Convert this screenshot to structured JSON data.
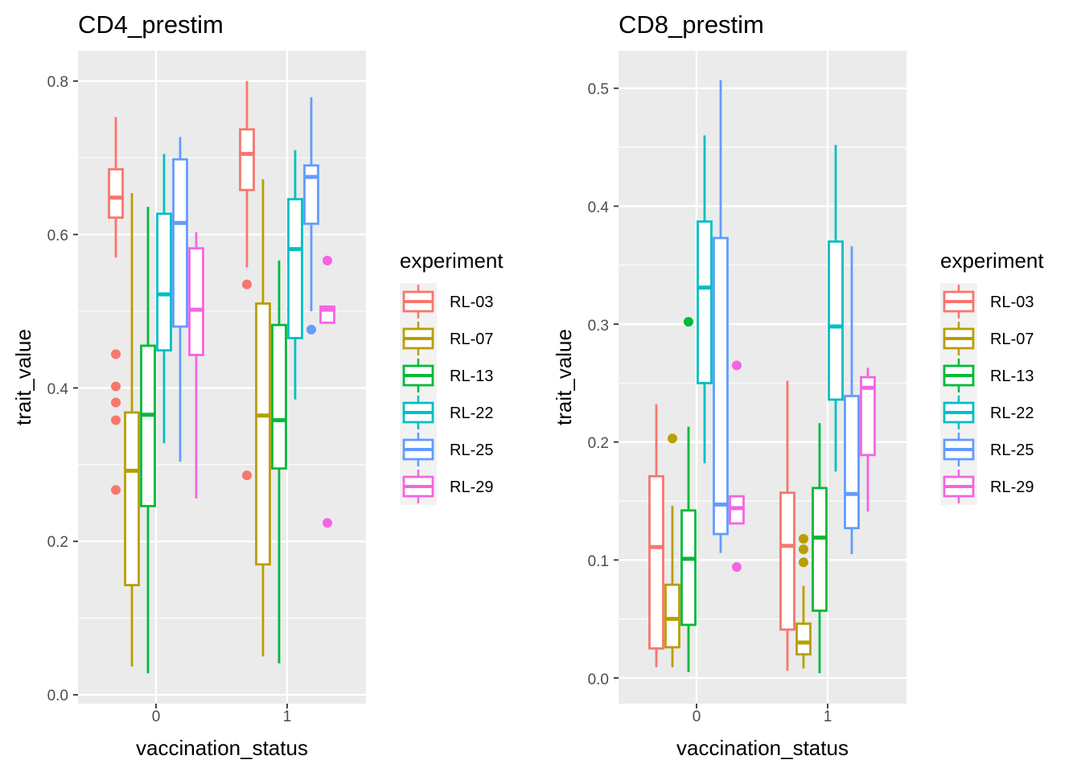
{
  "chart_data": [
    {
      "type": "boxplot",
      "title": "CD4_prestim",
      "xlabel": "vaccination_status",
      "ylabel": "trait_value",
      "categories": [
        "0",
        "1"
      ],
      "ylim": [
        -0.01,
        0.84
      ],
      "yticks": [
        "0.0",
        "0.2",
        "0.4",
        "0.6",
        "0.8"
      ],
      "legend_title": "experiment",
      "series": [
        {
          "name": "RL-03",
          "color": "#F8766D",
          "boxes": [
            {
              "category": "0",
              "lower": 0.57,
              "q1": 0.622,
              "median": 0.648,
              "q3": 0.685,
              "upper": 0.753,
              "outliers": [
                0.444,
                0.402,
                0.381,
                0.358,
                0.267
              ]
            },
            {
              "category": "1",
              "lower": 0.557,
              "q1": 0.658,
              "median": 0.705,
              "q3": 0.737,
              "upper": 0.8,
              "outliers": [
                0.535,
                0.286
              ]
            }
          ]
        },
        {
          "name": "RL-07",
          "color": "#B79F00",
          "boxes": [
            {
              "category": "0",
              "lower": 0.037,
              "q1": 0.143,
              "median": 0.292,
              "q3": 0.368,
              "upper": 0.654,
              "outliers": []
            },
            {
              "category": "1",
              "lower": 0.05,
              "q1": 0.17,
              "median": 0.364,
              "q3": 0.51,
              "upper": 0.672,
              "outliers": []
            }
          ]
        },
        {
          "name": "RL-13",
          "color": "#00BA38",
          "boxes": [
            {
              "category": "0",
              "lower": 0.028,
              "q1": 0.246,
              "median": 0.365,
              "q3": 0.455,
              "upper": 0.636,
              "outliers": []
            },
            {
              "category": "1",
              "lower": 0.041,
              "q1": 0.295,
              "median": 0.358,
              "q3": 0.482,
              "upper": 0.566,
              "outliers": []
            }
          ]
        },
        {
          "name": "RL-22",
          "color": "#00BFC4",
          "boxes": [
            {
              "category": "0",
              "lower": 0.328,
              "q1": 0.449,
              "median": 0.522,
              "q3": 0.627,
              "upper": 0.705,
              "outliers": []
            },
            {
              "category": "1",
              "lower": 0.385,
              "q1": 0.465,
              "median": 0.581,
              "q3": 0.646,
              "upper": 0.71,
              "outliers": []
            }
          ]
        },
        {
          "name": "RL-25",
          "color": "#619CFF",
          "boxes": [
            {
              "category": "0",
              "lower": 0.304,
              "q1": 0.48,
              "median": 0.615,
              "q3": 0.698,
              "upper": 0.727,
              "outliers": []
            },
            {
              "category": "1",
              "lower": 0.5,
              "q1": 0.614,
              "median": 0.675,
              "q3": 0.69,
              "upper": 0.779,
              "outliers": [
                0.476
              ]
            }
          ]
        },
        {
          "name": "RL-29",
          "color": "#F564E3",
          "boxes": [
            {
              "category": "0",
              "lower": 0.256,
              "q1": 0.443,
              "median": 0.502,
              "q3": 0.582,
              "upper": 0.603,
              "outliers": []
            },
            {
              "category": "1",
              "lower": 0.485,
              "q1": 0.485,
              "median": 0.502,
              "q3": 0.506,
              "upper": 0.506,
              "outliers": [
                0.566,
                0.224
              ]
            }
          ]
        }
      ]
    },
    {
      "type": "boxplot",
      "title": "CD8_prestim",
      "xlabel": "vaccination_status",
      "ylabel": "trait_value",
      "categories": [
        "0",
        "1"
      ],
      "ylim": [
        -0.02,
        0.52
      ],
      "yticks": [
        "0.0",
        "0.1",
        "0.2",
        "0.3",
        "0.4",
        "0.5"
      ],
      "legend_title": "experiment",
      "series": [
        {
          "name": "RL-03",
          "color": "#F8766D",
          "boxes": [
            {
              "category": "0",
              "lower": 0.009,
              "q1": 0.025,
              "median": 0.111,
              "q3": 0.171,
              "upper": 0.232,
              "outliers": []
            },
            {
              "category": "1",
              "lower": 0.006,
              "q1": 0.041,
              "median": 0.112,
              "q3": 0.157,
              "upper": 0.252,
              "outliers": []
            }
          ]
        },
        {
          "name": "RL-07",
          "color": "#B79F00",
          "boxes": [
            {
              "category": "0",
              "lower": 0.009,
              "q1": 0.026,
              "median": 0.05,
              "q3": 0.079,
              "upper": 0.146,
              "outliers": [
                0.203
              ]
            },
            {
              "category": "1",
              "lower": 0.008,
              "q1": 0.02,
              "median": 0.03,
              "q3": 0.046,
              "upper": 0.078,
              "outliers": [
                0.118,
                0.109,
                0.098
              ]
            }
          ]
        },
        {
          "name": "RL-13",
          "color": "#00BA38",
          "boxes": [
            {
              "category": "0",
              "lower": 0.005,
              "q1": 0.045,
              "median": 0.101,
              "q3": 0.142,
              "upper": 0.213,
              "outliers": [
                0.302
              ]
            },
            {
              "category": "1",
              "lower": 0.004,
              "q1": 0.057,
              "median": 0.119,
              "q3": 0.161,
              "upper": 0.216,
              "outliers": []
            }
          ]
        },
        {
          "name": "RL-22",
          "color": "#00BFC4",
          "boxes": [
            {
              "category": "0",
              "lower": 0.182,
              "q1": 0.25,
              "median": 0.331,
              "q3": 0.387,
              "upper": 0.46,
              "outliers": []
            },
            {
              "category": "1",
              "lower": 0.175,
              "q1": 0.236,
              "median": 0.298,
              "q3": 0.37,
              "upper": 0.452,
              "outliers": []
            }
          ]
        },
        {
          "name": "RL-25",
          "color": "#619CFF",
          "boxes": [
            {
              "category": "0",
              "lower": 0.106,
              "q1": 0.122,
              "median": 0.147,
              "q3": 0.373,
              "upper": 0.507,
              "outliers": []
            },
            {
              "category": "1",
              "lower": 0.105,
              "q1": 0.127,
              "median": 0.156,
              "q3": 0.239,
              "upper": 0.366,
              "outliers": []
            }
          ]
        },
        {
          "name": "RL-29",
          "color": "#F564E3",
          "boxes": [
            {
              "category": "0",
              "lower": 0.131,
              "q1": 0.131,
              "median": 0.144,
              "q3": 0.154,
              "upper": 0.154,
              "outliers": [
                0.265,
                0.094
              ]
            },
            {
              "category": "1",
              "lower": 0.141,
              "q1": 0.189,
              "median": 0.246,
              "q3": 0.255,
              "upper": 0.263,
              "outliers": []
            }
          ]
        }
      ]
    }
  ]
}
